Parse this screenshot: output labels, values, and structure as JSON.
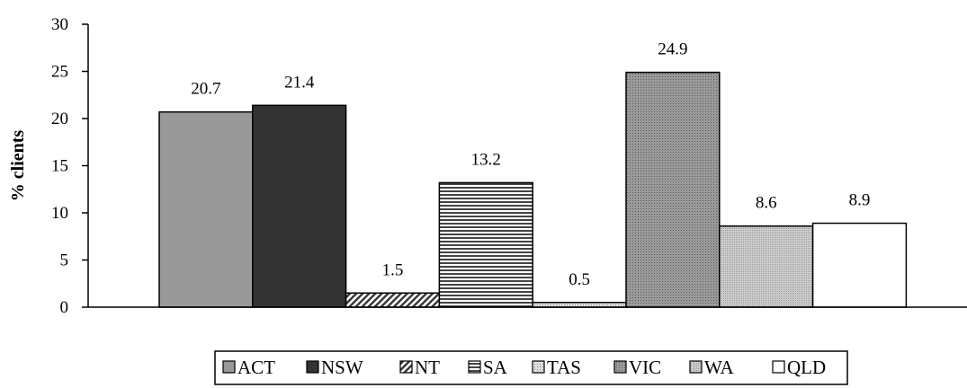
{
  "chart_data": {
    "type": "bar",
    "categories": [
      "ACT",
      "NSW",
      "NT",
      "SA",
      "TAS",
      "VIC",
      "WA",
      "QLD"
    ],
    "values": [
      20.7,
      21.4,
      1.5,
      13.2,
      0.5,
      24.9,
      8.6,
      8.9
    ],
    "value_labels": [
      "20.7",
      "21.4",
      "1.5",
      "13.2",
      "0.5",
      "24.9",
      "8.6",
      "8.9"
    ],
    "ylabel": "% clients",
    "ylim": [
      0,
      30
    ],
    "yticks": [
      "0",
      "5",
      "10",
      "15",
      "20",
      "25",
      "30"
    ],
    "grid": false,
    "legend_position": "bottom",
    "legend": [
      "ACT",
      "NSW",
      "NT",
      "SA",
      "TAS",
      "VIC",
      "WA",
      "QLD"
    ],
    "colors": [
      "#999999",
      "#333333",
      "#777777",
      "#888888",
      "#cccccc",
      "#888888",
      "#bbbbbb",
      "#ffffff"
    ],
    "patterns": [
      "solid",
      "solid",
      "diagonal",
      "horizontal",
      "dots-light",
      "dots-dark",
      "dots-fine",
      "solid"
    ]
  }
}
